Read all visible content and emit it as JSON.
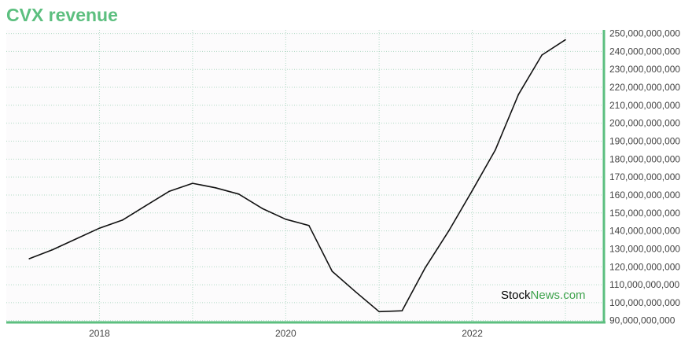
{
  "title": "CVX revenue",
  "watermark": {
    "part1": "Stock",
    "part2": "News",
    "part3": ".com"
  },
  "colors": {
    "accent": "#5cbf7f",
    "line": "#111111",
    "grid": "#b0d9c4",
    "plot_bg": "#fcfbfc"
  },
  "chart_data": {
    "type": "line",
    "title": "CVX revenue",
    "xlabel": "",
    "ylabel": "",
    "x": [
      "2017-04-01",
      "2017-07-01",
      "2017-10-01",
      "2018-01-01",
      "2018-04-01",
      "2018-07-01",
      "2018-10-01",
      "2019-01-01",
      "2019-04-01",
      "2019-07-01",
      "2019-10-01",
      "2020-01-01",
      "2020-04-01",
      "2020-07-01",
      "2020-10-01",
      "2021-01-01",
      "2021-04-01",
      "2021-07-01",
      "2021-10-01",
      "2022-01-01",
      "2022-04-01",
      "2022-07-01",
      "2022-10-01",
      "2023-01-01"
    ],
    "series": [
      {
        "values": [
          124500000000,
          129500000000,
          135500000000,
          141500000000,
          146000000000,
          154000000000,
          162000000000,
          166500000000,
          164000000000,
          160500000000,
          152500000000,
          146500000000,
          143000000000,
          117500000000,
          106000000000,
          95000000000,
          95500000000,
          119500000000,
          140000000000,
          162500000000,
          185000000000,
          216000000000,
          238000000000,
          246500000000
        ]
      }
    ],
    "x_ticks": [
      "2018",
      "2020",
      "2022"
    ],
    "y_ticks": [
      "90,000,000,000",
      "100,000,000,000",
      "110,000,000,000",
      "120,000,000,000",
      "130,000,000,000",
      "140,000,000,000",
      "150,000,000,000",
      "160,000,000,000",
      "170,000,000,000",
      "180,000,000,000",
      "190,000,000,000",
      "200,000,000,000",
      "210,000,000,000",
      "220,000,000,000",
      "230,000,000,000",
      "240,000,000,000",
      "250,000,000,000"
    ],
    "xlim": [
      "2017-01-01",
      "2023-06-01"
    ],
    "ylim": [
      89000000000,
      252000000000
    ],
    "y_axis_position": "right",
    "grid": true,
    "legend": "none"
  }
}
